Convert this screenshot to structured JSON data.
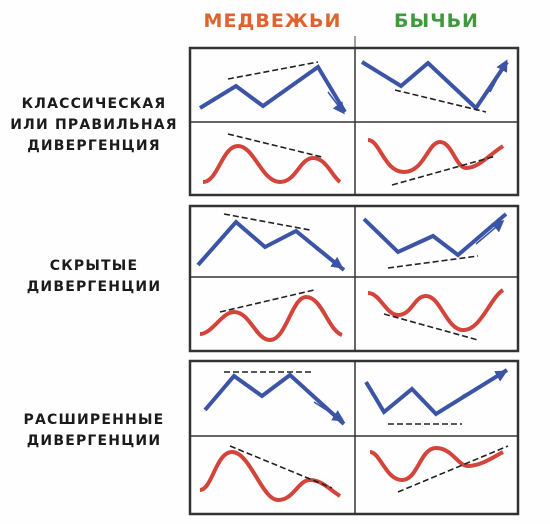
{
  "headers": {
    "bearish": "МЕДВЕЖЬИ",
    "bullish": "БЫЧЬИ"
  },
  "rows": [
    {
      "label_lines": [
        "КЛАССИЧЕСКАЯ",
        "ИЛИ ПРАВИЛЬНАЯ",
        "ДИВЕРГЕНЦИЯ"
      ]
    },
    {
      "label_lines": [
        "СКРЫТЫЕ",
        "ДИВЕРГЕНЦИИ"
      ]
    },
    {
      "label_lines": [
        "РАСШИРЕННЫЕ",
        "ДИВЕРГЕНЦИИ"
      ]
    }
  ],
  "colors": {
    "bearish_header": "#e0622e",
    "bullish_header": "#3f9a3f",
    "price_line": "#3c54a5",
    "oscillator_line": "#d3443a",
    "dashed_line": "#222222",
    "frame": "#333333"
  }
}
